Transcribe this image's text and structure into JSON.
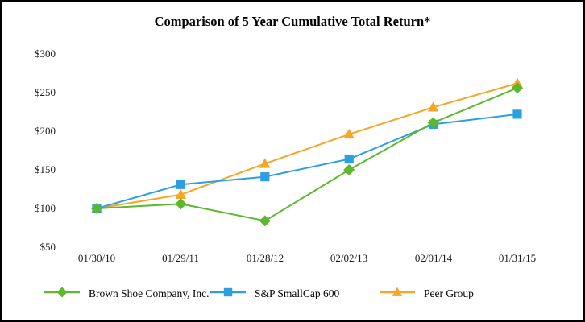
{
  "chart_data": {
    "type": "line",
    "title": "Comparison of 5 Year Cumulative Total Return*",
    "xlabel": "",
    "ylabel": "",
    "y_unit": "USD",
    "ylim": [
      50,
      300
    ],
    "grid": false,
    "legend_position": "bottom",
    "x_tick_labels": [
      "01/30/10",
      "01/29/11",
      "01/28/12",
      "02/02/13",
      "02/01/14",
      "01/31/15"
    ],
    "y_tick_labels": [
      "$300",
      "$250",
      "$200",
      "$150",
      "$100",
      "$50"
    ],
    "y_tick_values": [
      300,
      250,
      200,
      150,
      100,
      50
    ],
    "categories": [
      "01/30/10",
      "01/29/11",
      "01/28/12",
      "02/02/13",
      "02/01/14",
      "01/31/15"
    ],
    "series": [
      {
        "name": "Brown Shoe Company, Inc.",
        "marker": "diamond",
        "color": "#5cb82c",
        "values": [
          100,
          106,
          84,
          150,
          211,
          256
        ]
      },
      {
        "name": "S&P SmallCap 600",
        "marker": "square",
        "color": "#2b9fe2",
        "values": [
          100,
          131,
          141,
          164,
          209,
          222
        ]
      },
      {
        "name": "Peer Group",
        "marker": "triangle",
        "color": "#f5a623",
        "values": [
          100,
          118,
          158,
          196,
          231,
          262
        ]
      }
    ]
  }
}
